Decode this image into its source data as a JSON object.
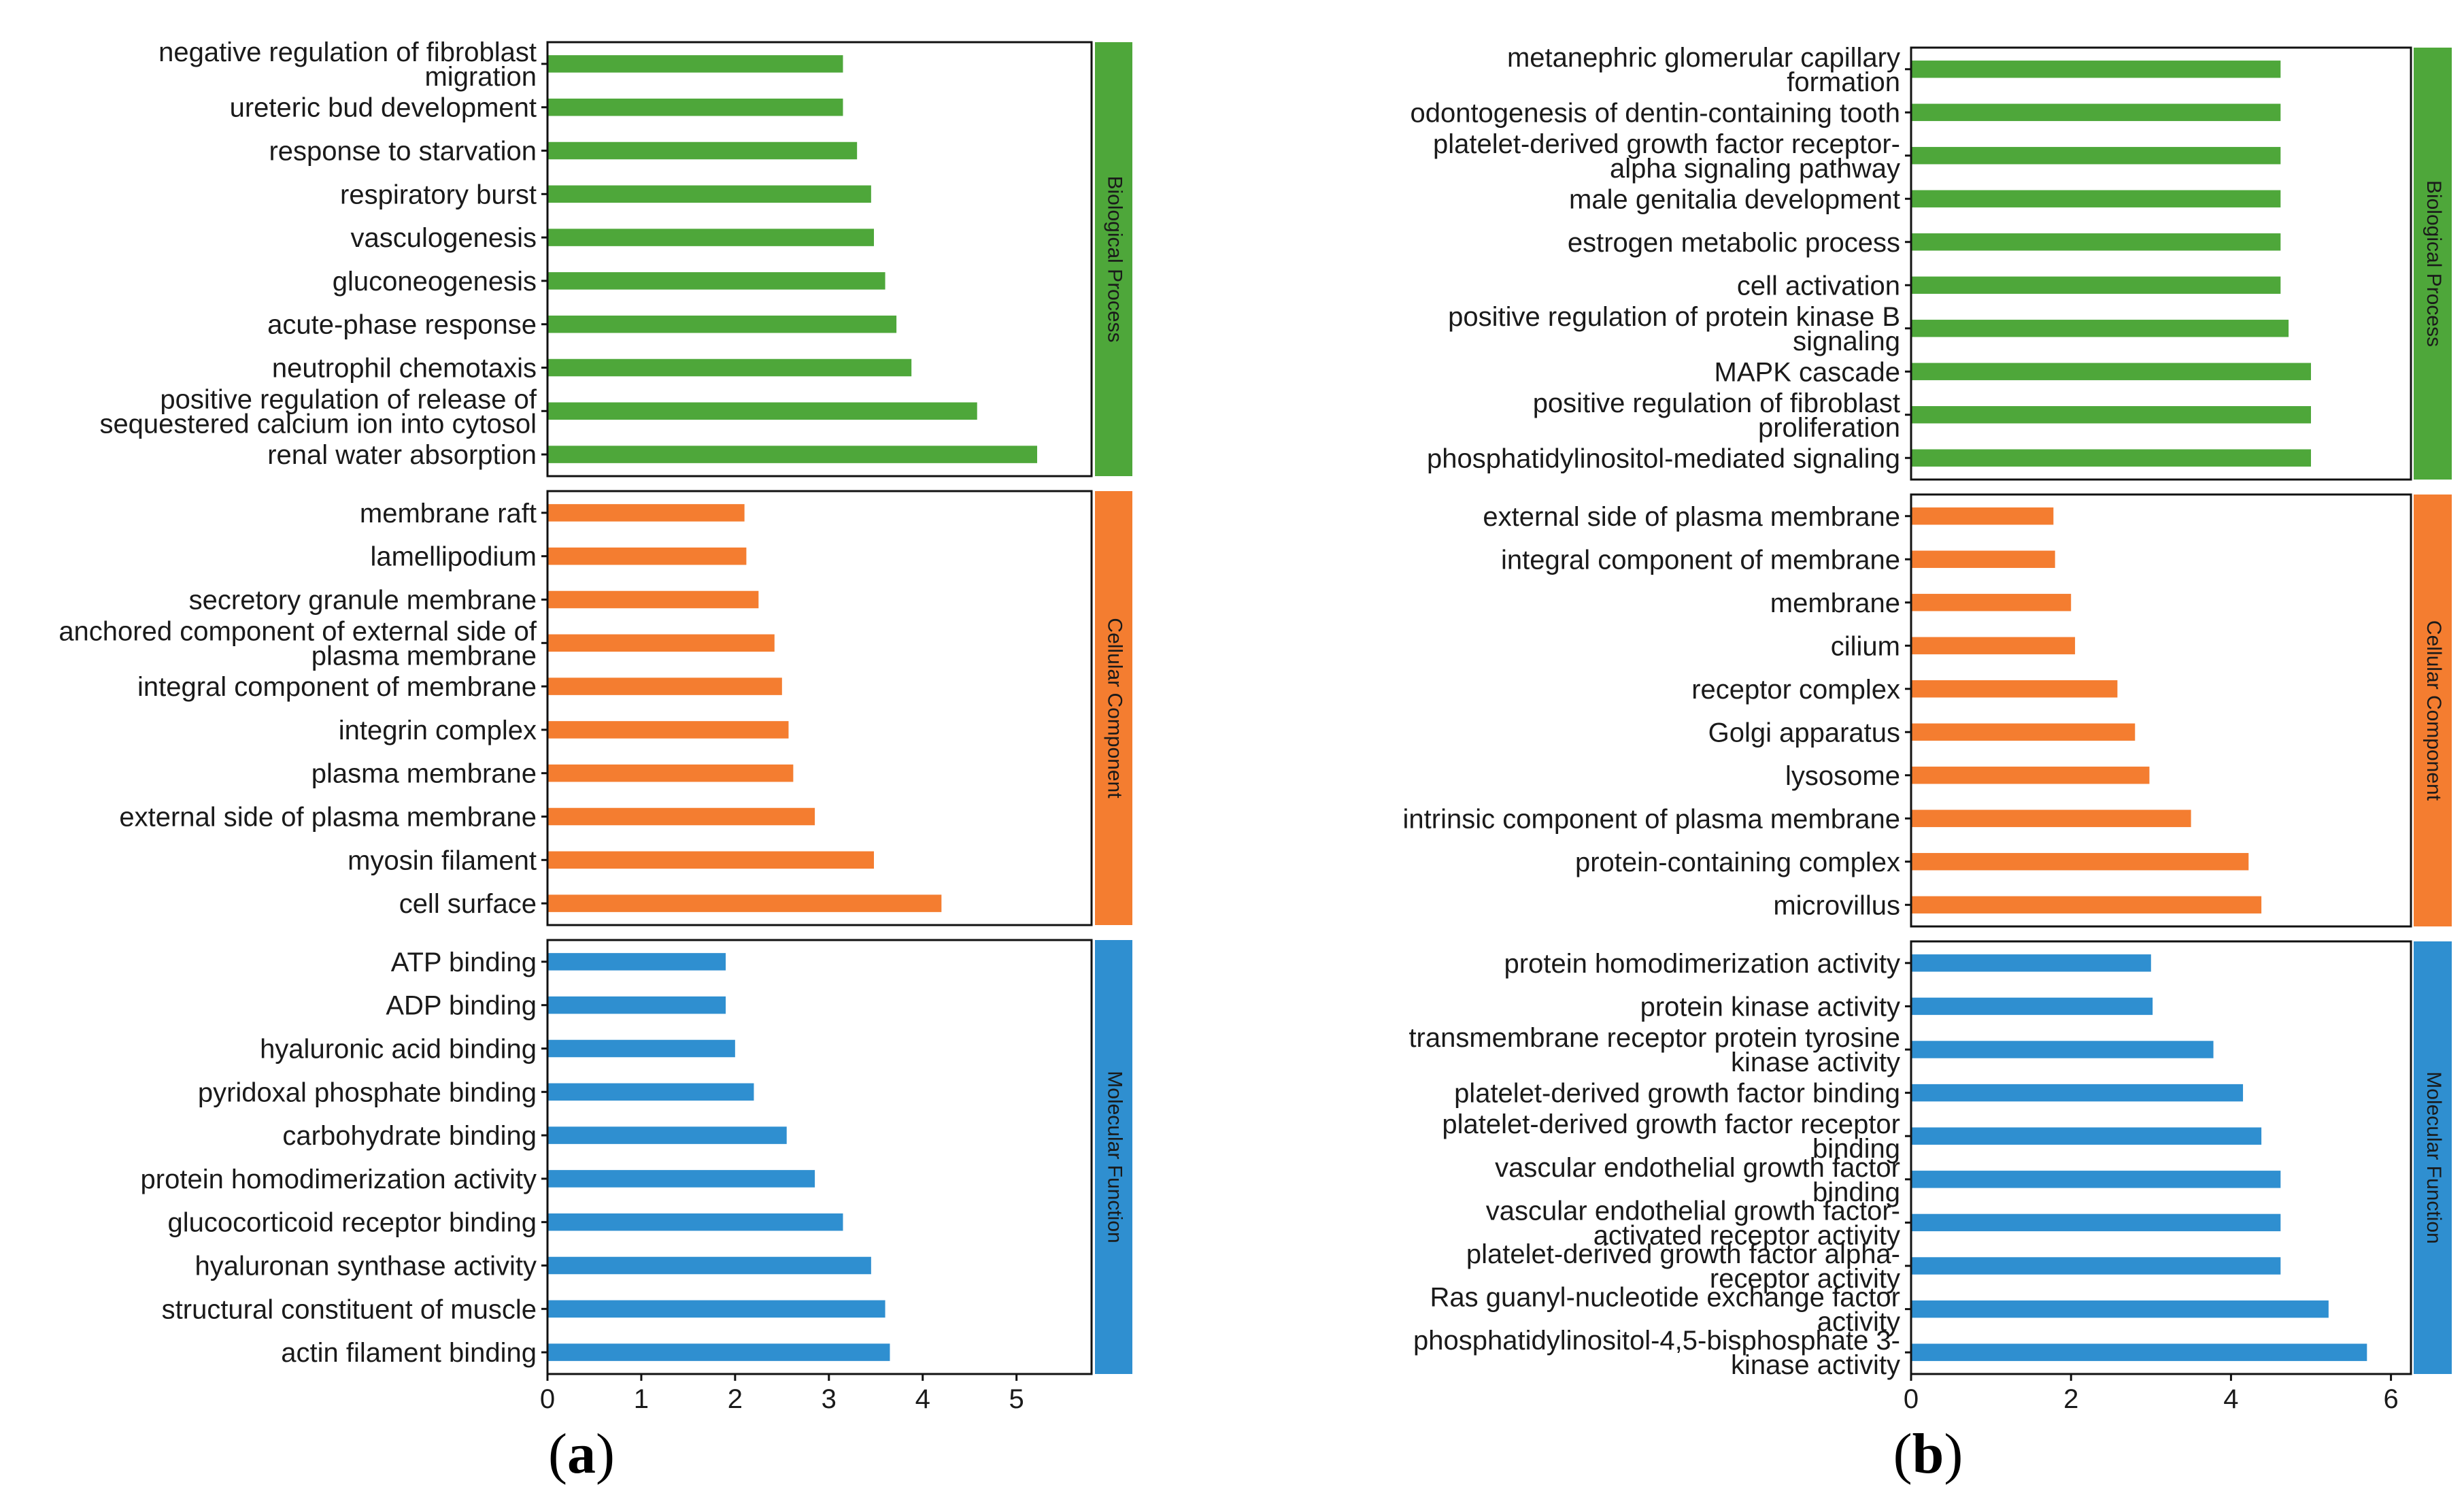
{
  "colors": {
    "biological_process": "#4ea73a",
    "cellular_component": "#f47d30",
    "molecular_function": "#2f8fd0",
    "frame": "#111111",
    "text": "#1a1a1a"
  },
  "panel_labels": [
    {
      "open": "(",
      "letter": "a",
      "close": ")"
    },
    {
      "open": "(",
      "letter": "b",
      "close": ")"
    }
  ],
  "chart_data": [
    {
      "type": "bar",
      "orientation": "horizontal",
      "panel": "a",
      "title": "",
      "xlabel": "",
      "ylabel": "",
      "xlim": [
        0,
        5.8
      ],
      "xticks": [
        0,
        1,
        2,
        3,
        4,
        5
      ],
      "grid": false,
      "groups": [
        {
          "name": "Biological Process",
          "color": "#4ea73a",
          "categories": [
            "negative regulation of fibroblast migration",
            "ureteric bud development",
            "response to starvation",
            "respiratory burst",
            "vasculogenesis",
            "gluconeogenesis",
            "acute-phase response",
            "neutrophil chemotaxis",
            "positive regulation of release of sequestered calcium ion into cytosol",
            "renal water absorption"
          ],
          "values": [
            3.15,
            3.15,
            3.3,
            3.45,
            3.48,
            3.6,
            3.72,
            3.88,
            4.58,
            5.22
          ]
        },
        {
          "name": "Cellular Component",
          "color": "#f47d30",
          "categories": [
            "membrane raft",
            "lamellipodium",
            "secretory granule membrane",
            "anchored component of external side of plasma membrane",
            "integral component of membrane",
            "integrin complex",
            "plasma membrane",
            "external side of plasma membrane",
            "myosin filament",
            "cell surface"
          ],
          "values": [
            2.1,
            2.12,
            2.25,
            2.42,
            2.5,
            2.57,
            2.62,
            2.85,
            3.48,
            4.2
          ]
        },
        {
          "name": "Molecular Function",
          "color": "#2f8fd0",
          "categories": [
            "ATP binding",
            "ADP binding",
            "hyaluronic acid binding",
            "pyridoxal phosphate binding",
            "carbohydrate binding",
            "protein homodimerization activity",
            "glucocorticoid receptor binding",
            "hyaluronan synthase activity",
            "structural constituent of muscle",
            "actin filament binding"
          ],
          "values": [
            1.9,
            1.9,
            2.0,
            2.2,
            2.55,
            2.85,
            3.15,
            3.45,
            3.6,
            3.65
          ]
        }
      ]
    },
    {
      "type": "bar",
      "orientation": "horizontal",
      "panel": "b",
      "title": "",
      "xlabel": "",
      "ylabel": "",
      "xlim": [
        0,
        6.25
      ],
      "xticks": [
        0,
        2,
        4,
        6
      ],
      "grid": false,
      "groups": [
        {
          "name": "Biological Process",
          "color": "#4ea73a",
          "categories": [
            "metanephric glomerular capillary formation",
            "odontogenesis of dentin-containing tooth",
            "platelet-derived growth factor receptor-alpha signaling pathway",
            "male genitalia development",
            "estrogen metabolic process",
            "cell activation",
            "positive regulation of protein kinase B signaling",
            "MAPK cascade",
            "positive regulation of fibroblast proliferation",
            "phosphatidylinositol-mediated signaling"
          ],
          "values": [
            4.62,
            4.62,
            4.62,
            4.62,
            4.62,
            4.62,
            4.72,
            5.0,
            5.0,
            5.0
          ]
        },
        {
          "name": "Cellular Component",
          "color": "#f47d30",
          "categories": [
            "external side of plasma membrane",
            "integral component of membrane",
            "membrane",
            "cilium",
            "receptor complex",
            "Golgi apparatus",
            "lysosome",
            "intrinsic component of plasma membrane",
            "protein-containing complex",
            "microvillus"
          ],
          "values": [
            1.78,
            1.8,
            2.0,
            2.05,
            2.58,
            2.8,
            2.98,
            3.5,
            4.22,
            4.38
          ]
        },
        {
          "name": "Molecular Function",
          "color": "#2f8fd0",
          "categories": [
            "protein homodimerization activity",
            "protein kinase activity",
            "transmembrane receptor protein tyrosine kinase activity",
            "platelet-derived growth factor binding",
            "platelet-derived growth factor receptor binding",
            "vascular endothelial growth factor binding",
            "vascular endothelial growth factor-activated receptor activity",
            "platelet-derived growth factor alpha-receptor activity",
            "Ras guanyl-nucleotide exchange factor activity",
            "phosphatidylinositol-4,5-bisphosphate 3-kinase activity"
          ],
          "values": [
            3.0,
            3.02,
            3.78,
            4.15,
            4.38,
            4.62,
            4.62,
            4.62,
            5.22,
            5.7
          ]
        }
      ]
    }
  ]
}
